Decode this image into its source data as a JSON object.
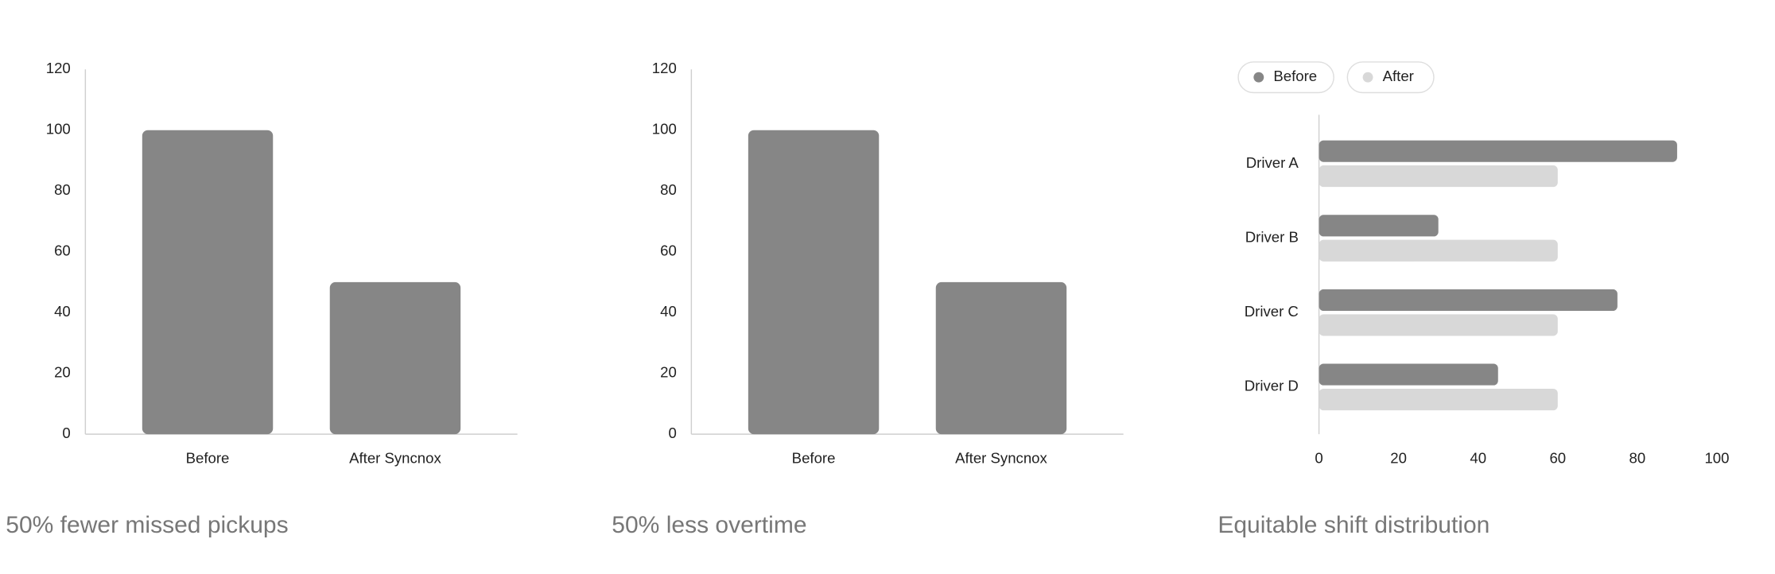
{
  "chart_data": [
    {
      "type": "bar",
      "title": "50% fewer missed pickups",
      "categories": [
        "Before",
        "After Syncnox"
      ],
      "values": [
        100,
        50
      ],
      "color": "#868686",
      "ylim": [
        0,
        120
      ],
      "yticks": [
        0,
        20,
        40,
        60,
        80,
        100,
        120
      ]
    },
    {
      "type": "bar",
      "title": "50% less overtime",
      "categories": [
        "Before",
        "After Syncnox"
      ],
      "values": [
        100,
        50
      ],
      "color": "#868686",
      "ylim": [
        0,
        120
      ],
      "yticks": [
        0,
        20,
        40,
        60,
        80,
        100,
        120
      ]
    },
    {
      "type": "hbar",
      "title": "Equitable shift distribution",
      "categories": [
        "Driver A",
        "Driver B",
        "Driver C",
        "Driver D"
      ],
      "series": [
        {
          "name": "Before",
          "color": "#868686",
          "values": [
            90,
            30,
            75,
            45
          ]
        },
        {
          "name": "After",
          "color": "#d8d8d8",
          "values": [
            60,
            60,
            60,
            60
          ]
        }
      ],
      "xlim": [
        0,
        100
      ],
      "xticks": [
        0,
        20,
        40,
        60,
        80,
        100
      ],
      "legend": "top-left"
    }
  ]
}
